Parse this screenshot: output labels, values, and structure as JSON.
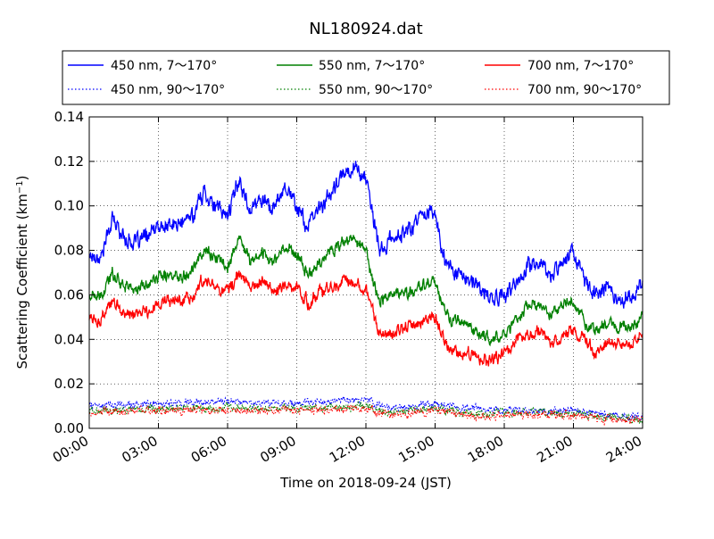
{
  "chart_data": {
    "type": "line",
    "title": "NL180924.dat",
    "xlabel": "Time on 2018-09-24 (JST)",
    "ylabel_main": "Scattering Coefficient (km",
    "ylabel_sup": "−1",
    "ylabel_close": ")",
    "xlim": [
      0,
      24
    ],
    "ylim": [
      0,
      0.14
    ],
    "grid": true,
    "legend_position": "top",
    "x_ticks": [
      0,
      3,
      6,
      9,
      12,
      15,
      18,
      21,
      24
    ],
    "x_tick_labels": [
      "00:00",
      "03:00",
      "06:00",
      "09:00",
      "12:00",
      "15:00",
      "18:00",
      "21:00",
      "24:00"
    ],
    "y_ticks": [
      0,
      0.02,
      0.04,
      0.06,
      0.08,
      0.1,
      0.12,
      0.14
    ],
    "y_tick_labels": [
      "0.00",
      "0.02",
      "0.04",
      "0.06",
      "0.08",
      "0.10",
      "0.12",
      "0.14"
    ],
    "series": [
      {
        "name": "450 nm, 7～170°",
        "color": "#0000ff",
        "style": "solid",
        "x": [
          0,
          0.5,
          1,
          1.5,
          2,
          3,
          4,
          4.5,
          5,
          5.5,
          6,
          6.5,
          7,
          7.5,
          8,
          8.5,
          9,
          9.5,
          10,
          10.5,
          11,
          11.5,
          12,
          12.3,
          12.6,
          13,
          14,
          14.5,
          15,
          15.3,
          15.6,
          16,
          16.5,
          17,
          17.5,
          18,
          18.5,
          19,
          19.5,
          20,
          20.5,
          21,
          21.5,
          22,
          22.5,
          23,
          23.5,
          24
        ],
        "y": [
          0.078,
          0.077,
          0.094,
          0.086,
          0.083,
          0.09,
          0.092,
          0.096,
          0.107,
          0.099,
          0.096,
          0.112,
          0.098,
          0.104,
          0.098,
          0.11,
          0.1,
          0.09,
          0.1,
          0.105,
          0.114,
          0.118,
          0.112,
          0.095,
          0.079,
          0.084,
          0.09,
          0.098,
          0.097,
          0.08,
          0.072,
          0.071,
          0.066,
          0.062,
          0.058,
          0.06,
          0.064,
          0.073,
          0.075,
          0.068,
          0.076,
          0.08,
          0.065,
          0.061,
          0.064,
          0.058,
          0.059,
          0.064
        ]
      },
      {
        "name": "550 nm, 7～170°",
        "color": "#008000",
        "style": "solid",
        "x": [
          0,
          0.5,
          1,
          1.5,
          2,
          3,
          4,
          4.5,
          5,
          5.5,
          6,
          6.5,
          7,
          7.5,
          8,
          8.5,
          9,
          9.5,
          10,
          10.5,
          11,
          11.5,
          12,
          12.3,
          12.6,
          13,
          14,
          14.5,
          15,
          15.3,
          15.6,
          16,
          16.5,
          17,
          17.5,
          18,
          18.5,
          19,
          19.5,
          20,
          20.5,
          21,
          21.5,
          22,
          22.5,
          23,
          23.5,
          24
        ],
        "y": [
          0.06,
          0.058,
          0.07,
          0.065,
          0.062,
          0.068,
          0.069,
          0.072,
          0.081,
          0.076,
          0.073,
          0.085,
          0.075,
          0.079,
          0.075,
          0.082,
          0.078,
          0.069,
          0.075,
          0.08,
          0.083,
          0.085,
          0.08,
          0.066,
          0.058,
          0.06,
          0.061,
          0.065,
          0.066,
          0.056,
          0.049,
          0.048,
          0.046,
          0.042,
          0.04,
          0.042,
          0.049,
          0.055,
          0.055,
          0.051,
          0.054,
          0.057,
          0.047,
          0.044,
          0.049,
          0.045,
          0.046,
          0.05
        ]
      },
      {
        "name": "700 nm, 7～170°",
        "color": "#ff0000",
        "style": "solid",
        "x": [
          0,
          0.5,
          1,
          1.5,
          2,
          3,
          4,
          4.5,
          5,
          5.5,
          6,
          6.5,
          7,
          7.5,
          8,
          8.5,
          9,
          9.5,
          10,
          10.5,
          11,
          11.5,
          12,
          12.3,
          12.6,
          13,
          14,
          14.5,
          15,
          15.3,
          15.6,
          16,
          16.5,
          17,
          17.5,
          18,
          18.5,
          19,
          19.5,
          20,
          20.5,
          21,
          21.5,
          22,
          22.5,
          23,
          23.5,
          24
        ],
        "y": [
          0.05,
          0.048,
          0.057,
          0.052,
          0.05,
          0.056,
          0.058,
          0.06,
          0.067,
          0.064,
          0.062,
          0.069,
          0.063,
          0.066,
          0.062,
          0.064,
          0.063,
          0.056,
          0.061,
          0.064,
          0.066,
          0.067,
          0.063,
          0.052,
          0.043,
          0.043,
          0.046,
          0.048,
          0.05,
          0.043,
          0.035,
          0.034,
          0.033,
          0.031,
          0.031,
          0.033,
          0.04,
          0.043,
          0.043,
          0.039,
          0.041,
          0.045,
          0.039,
          0.034,
          0.039,
          0.038,
          0.038,
          0.041
        ]
      },
      {
        "name": "450 nm, 90～170°",
        "color": "#0000ff",
        "style": "dotted",
        "x": [
          0,
          3,
          6,
          9,
          12,
          13,
          15,
          16.5,
          18,
          21,
          22.5,
          24
        ],
        "y": [
          0.01,
          0.011,
          0.012,
          0.011,
          0.013,
          0.009,
          0.011,
          0.009,
          0.008,
          0.008,
          0.006,
          0.005
        ]
      },
      {
        "name": "550 nm, 90～170°",
        "color": "#008000",
        "style": "dotted",
        "x": [
          0,
          3,
          6,
          9,
          12,
          13,
          15,
          16.5,
          18,
          21,
          22.5,
          24
        ],
        "y": [
          0.008,
          0.009,
          0.009,
          0.009,
          0.01,
          0.007,
          0.009,
          0.007,
          0.007,
          0.007,
          0.005,
          0.004
        ]
      },
      {
        "name": "700 nm, 90～170°",
        "color": "#ff0000",
        "style": "dotted",
        "x": [
          0,
          3,
          6,
          9,
          12,
          13,
          15,
          16.5,
          18,
          21,
          22.5,
          24
        ],
        "y": [
          0.007,
          0.008,
          0.008,
          0.008,
          0.009,
          0.006,
          0.008,
          0.006,
          0.006,
          0.006,
          0.004,
          0.004
        ]
      }
    ],
    "legend": [
      [
        "450 nm, 7～170°",
        "550 nm, 7～170°",
        "700 nm, 7～170°"
      ],
      [
        "450 nm, 90～170°",
        "550 nm, 90～170°",
        "700 nm, 90～170°"
      ]
    ]
  }
}
